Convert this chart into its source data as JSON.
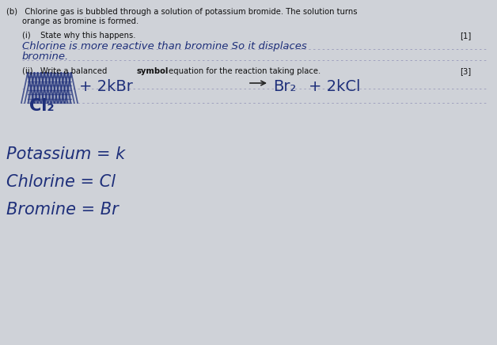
{
  "bg_color": "#cfd2d8",
  "paper_color": "#d8dae0",
  "fig_width": 6.28,
  "fig_height": 4.36,
  "dpi": 100,
  "hw_color": "#1e2f7a",
  "print_color": "#111111",
  "print_fontsize": 7.2,
  "top_text_1": "(b)   Chlorine gas is bubbled through a solution of potassium bromide. The solution turns",
  "top_text_2": "orange as bromine is formed.",
  "q1_text": "(i)    State why this happens.",
  "q1_mark": "[1]",
  "q2_start": "(ii)   Write a balanced ",
  "q2_bold": "symbol",
  "q2_end": " equation for the reaction taking place.",
  "q2_mark": "[3]",
  "ans1_line1": "Chlorine is more reactive than bromine So it displaces",
  "ans1_line2": "bromine.",
  "eq_plus2kbr": "+ 2kBr",
  "eq_arrow": "→",
  "eq_br2": "Br₂",
  "eq_plus2kcl": "+ 2kCl",
  "eq_cl2": "Cl₂",
  "note1": "Potassium = k",
  "note2": "Chlorine = Cl",
  "note3": "Bromine = Br",
  "dotline_color": "#9999bb",
  "dotline_lw": 0.6
}
